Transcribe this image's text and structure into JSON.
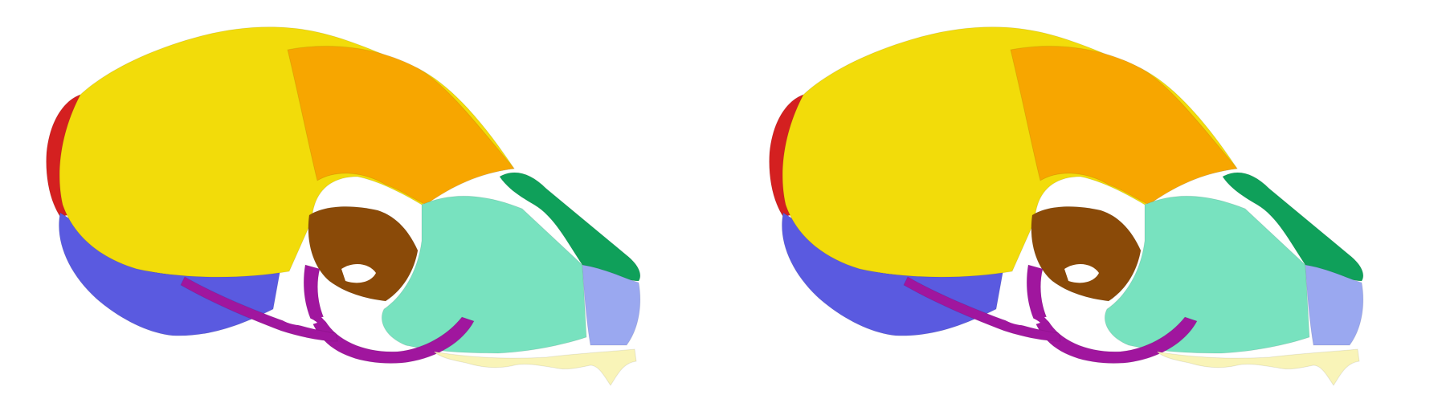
{
  "scene": {
    "background": "#ffffff",
    "views": [
      {
        "id": "left-view"
      },
      {
        "id": "right-view"
      }
    ]
  },
  "regions": [
    {
      "name": "parietal-region",
      "color": "#f2dc0a"
    },
    {
      "name": "frontal-region",
      "color": "#f7a600"
    },
    {
      "name": "occipital-region",
      "color": "#d42020"
    },
    {
      "name": "temporal-region",
      "color": "#5a5ae0"
    },
    {
      "name": "orbit-interior",
      "color": "#8a4a08"
    },
    {
      "name": "maxillary-region",
      "color": "#78e2bf"
    },
    {
      "name": "nasal-region",
      "color": "#0fa05a"
    },
    {
      "name": "premaxilla-region",
      "color": "#9aa8f0"
    },
    {
      "name": "zygomatic-arch",
      "color": "#a0169e"
    },
    {
      "name": "teeth",
      "color": "#f9f4b8"
    }
  ]
}
